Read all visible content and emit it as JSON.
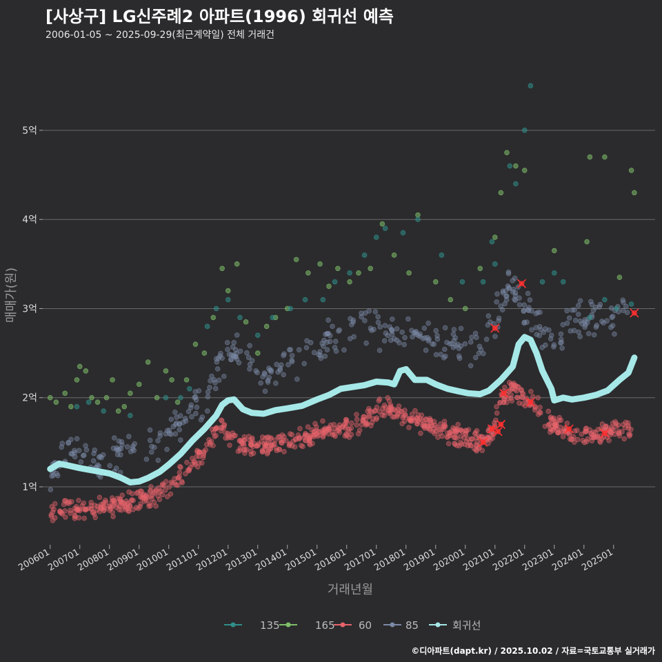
{
  "header": {
    "title": "[사상구] LG신주례2 아파트(1996) 회귀선 예측",
    "subtitle": "2006-01-05 ~ 2025-09-29(최근계약일) 전체 거래건"
  },
  "footer": {
    "credit": "©디아파트(dapt.kr) / 2025.10.02 / 자료=국토교통부 실거래가"
  },
  "chart_data": {
    "type": "scatter",
    "title": "[사상구] LG신주례2 아파트(1996) 회귀선 예측",
    "xlabel": "거래년월",
    "ylabel": "매매가(원)",
    "xlim": [
      2005.75,
      2026.4
    ],
    "ylim": [
      0.35,
      5.75
    ],
    "y_unit": "억",
    "grid": true,
    "legend_position": "bottom",
    "x_ticks": [
      {
        "value": 2006.0,
        "label": "200601"
      },
      {
        "value": 2007.0,
        "label": "200701"
      },
      {
        "value": 2008.0,
        "label": "200801"
      },
      {
        "value": 2009.0,
        "label": "200901"
      },
      {
        "value": 2010.0,
        "label": "201001"
      },
      {
        "value": 2011.0,
        "label": "201101"
      },
      {
        "value": 2012.0,
        "label": "201201"
      },
      {
        "value": 2013.0,
        "label": "201301"
      },
      {
        "value": 2014.0,
        "label": "201401"
      },
      {
        "value": 2015.0,
        "label": "201501"
      },
      {
        "value": 2016.0,
        "label": "201601"
      },
      {
        "value": 2017.0,
        "label": "201701"
      },
      {
        "value": 2018.0,
        "label": "201801"
      },
      {
        "value": 2019.0,
        "label": "201901"
      },
      {
        "value": 2020.0,
        "label": "202001"
      },
      {
        "value": 2021.0,
        "label": "202101"
      },
      {
        "value": 2022.0,
        "label": "202201"
      },
      {
        "value": 2023.0,
        "label": "202301"
      },
      {
        "value": 2024.0,
        "label": "202401"
      },
      {
        "value": 2025.0,
        "label": "202501"
      }
    ],
    "y_ticks": [
      {
        "value": 1,
        "label": "1억"
      },
      {
        "value": 2,
        "label": "2억"
      },
      {
        "value": 3,
        "label": "3억"
      },
      {
        "value": 4,
        "label": "4억"
      },
      {
        "value": 5,
        "label": "5억"
      }
    ],
    "series": [
      {
        "name": "135",
        "color": "#2f8f8a",
        "kind": "scatter",
        "points": [
          [
            2006.9,
            1.9
          ],
          [
            2007.3,
            1.95
          ],
          [
            2007.8,
            1.85
          ],
          [
            2008.7,
            1.8
          ],
          [
            2009.9,
            2.0
          ],
          [
            2010.4,
            2.0
          ],
          [
            2010.7,
            2.1
          ],
          [
            2011.3,
            2.8
          ],
          [
            2011.6,
            3.0
          ],
          [
            2012.0,
            3.1
          ],
          [
            2012.4,
            2.9
          ],
          [
            2013.0,
            2.7
          ],
          [
            2013.5,
            2.9
          ],
          [
            2014.1,
            3.0
          ],
          [
            2014.6,
            3.1
          ],
          [
            2015.2,
            3.1
          ],
          [
            2015.6,
            3.3
          ],
          [
            2016.1,
            3.4
          ],
          [
            2016.6,
            3.6
          ],
          [
            2017.0,
            3.8
          ],
          [
            2017.3,
            3.9
          ],
          [
            2017.9,
            3.85
          ],
          [
            2018.4,
            4.0
          ],
          [
            2019.2,
            3.6
          ],
          [
            2019.9,
            3.3
          ],
          [
            2020.6,
            3.3
          ],
          [
            2020.9,
            3.75
          ],
          [
            2021.0,
            3.5
          ],
          [
            2021.5,
            4.6
          ],
          [
            2021.7,
            4.4
          ],
          [
            2022.0,
            5.0
          ],
          [
            2022.2,
            5.5
          ],
          [
            2022.6,
            3.3
          ],
          [
            2023.0,
            3.4
          ],
          [
            2023.3,
            3.3
          ],
          [
            2024.2,
            2.9
          ],
          [
            2024.7,
            3.1
          ],
          [
            2025.1,
            3.0
          ],
          [
            2025.6,
            3.05
          ]
        ]
      },
      {
        "name": "165",
        "color": "#7fbf6a",
        "kind": "scatter",
        "points": [
          [
            2006.0,
            2.0
          ],
          [
            2006.2,
            1.95
          ],
          [
            2006.5,
            2.05
          ],
          [
            2006.7,
            1.9
          ],
          [
            2006.9,
            2.2
          ],
          [
            2007.0,
            2.35
          ],
          [
            2007.2,
            2.3
          ],
          [
            2007.4,
            2.0
          ],
          [
            2007.6,
            1.95
          ],
          [
            2007.9,
            2.0
          ],
          [
            2008.1,
            2.2
          ],
          [
            2008.3,
            1.85
          ],
          [
            2008.5,
            1.9
          ],
          [
            2008.7,
            2.05
          ],
          [
            2009.0,
            2.15
          ],
          [
            2009.3,
            2.4
          ],
          [
            2009.6,
            2.0
          ],
          [
            2009.9,
            2.3
          ],
          [
            2010.1,
            2.2
          ],
          [
            2010.3,
            1.95
          ],
          [
            2010.6,
            2.2
          ],
          [
            2010.9,
            2.6
          ],
          [
            2011.2,
            2.5
          ],
          [
            2011.5,
            2.9
          ],
          [
            2011.8,
            3.45
          ],
          [
            2012.0,
            3.2
          ],
          [
            2012.3,
            3.5
          ],
          [
            2012.6,
            2.85
          ],
          [
            2013.0,
            2.5
          ],
          [
            2013.3,
            2.8
          ],
          [
            2013.6,
            2.9
          ],
          [
            2014.0,
            3.0
          ],
          [
            2014.3,
            3.55
          ],
          [
            2014.7,
            3.4
          ],
          [
            2015.1,
            3.5
          ],
          [
            2015.4,
            3.25
          ],
          [
            2015.7,
            3.45
          ],
          [
            2016.1,
            3.3
          ],
          [
            2016.4,
            3.4
          ],
          [
            2016.8,
            3.45
          ],
          [
            2017.2,
            3.95
          ],
          [
            2017.6,
            3.6
          ],
          [
            2018.1,
            3.4
          ],
          [
            2018.4,
            4.05
          ],
          [
            2019.0,
            3.3
          ],
          [
            2019.5,
            3.1
          ],
          [
            2020.0,
            3.0
          ],
          [
            2020.5,
            3.45
          ],
          [
            2021.0,
            3.8
          ],
          [
            2021.2,
            4.3
          ],
          [
            2021.4,
            4.75
          ],
          [
            2021.7,
            4.6
          ],
          [
            2022.0,
            4.55
          ],
          [
            2023.0,
            3.65
          ],
          [
            2024.1,
            3.75
          ],
          [
            2024.2,
            4.7
          ],
          [
            2024.7,
            4.7
          ],
          [
            2025.2,
            3.35
          ],
          [
            2025.6,
            4.55
          ],
          [
            2025.7,
            4.3
          ]
        ]
      },
      {
        "name": "60",
        "color": "#e8636b",
        "kind": "scatter",
        "density": true,
        "trend": [
          [
            2006.0,
            0.73
          ],
          [
            2006.5,
            0.74
          ],
          [
            2007.0,
            0.75
          ],
          [
            2007.5,
            0.76
          ],
          [
            2008.0,
            0.78
          ],
          [
            2008.5,
            0.8
          ],
          [
            2009.0,
            0.84
          ],
          [
            2009.5,
            0.9
          ],
          [
            2010.0,
            0.98
          ],
          [
            2010.5,
            1.15
          ],
          [
            2011.0,
            1.3
          ],
          [
            2011.5,
            1.55
          ],
          [
            2011.8,
            1.65
          ],
          [
            2012.1,
            1.55
          ],
          [
            2012.5,
            1.5
          ],
          [
            2013.0,
            1.45
          ],
          [
            2013.5,
            1.47
          ],
          [
            2014.0,
            1.5
          ],
          [
            2014.5,
            1.55
          ],
          [
            2015.0,
            1.6
          ],
          [
            2015.5,
            1.65
          ],
          [
            2016.0,
            1.68
          ],
          [
            2016.5,
            1.7
          ],
          [
            2017.0,
            1.85
          ],
          [
            2017.3,
            1.9
          ],
          [
            2017.6,
            1.85
          ],
          [
            2018.0,
            1.8
          ],
          [
            2018.5,
            1.72
          ],
          [
            2019.0,
            1.65
          ],
          [
            2019.5,
            1.6
          ],
          [
            2020.0,
            1.55
          ],
          [
            2020.5,
            1.5
          ],
          [
            2020.9,
            1.6
          ],
          [
            2021.0,
            1.75
          ],
          [
            2021.3,
            2.0
          ],
          [
            2021.6,
            2.1
          ],
          [
            2022.0,
            2.0
          ],
          [
            2022.4,
            1.9
          ],
          [
            2022.8,
            1.75
          ],
          [
            2023.2,
            1.65
          ],
          [
            2023.6,
            1.6
          ],
          [
            2024.0,
            1.58
          ],
          [
            2024.5,
            1.58
          ],
          [
            2025.0,
            1.62
          ],
          [
            2025.6,
            1.65
          ]
        ]
      },
      {
        "name": "85",
        "color": "#7c8aa8",
        "kind": "scatter",
        "density": true,
        "trend": [
          [
            2006.0,
            1.2
          ],
          [
            2006.4,
            1.35
          ],
          [
            2006.8,
            1.4
          ],
          [
            2007.2,
            1.38
          ],
          [
            2007.6,
            1.33
          ],
          [
            2008.0,
            1.35
          ],
          [
            2008.5,
            1.4
          ],
          [
            2009.0,
            1.45
          ],
          [
            2009.5,
            1.5
          ],
          [
            2010.0,
            1.6
          ],
          [
            2010.5,
            1.75
          ],
          [
            2011.0,
            1.9
          ],
          [
            2011.5,
            2.2
          ],
          [
            2012.0,
            2.45
          ],
          [
            2012.5,
            2.6
          ],
          [
            2013.0,
            2.2
          ],
          [
            2013.5,
            2.35
          ],
          [
            2014.0,
            2.4
          ],
          [
            2014.5,
            2.45
          ],
          [
            2015.0,
            2.55
          ],
          [
            2015.5,
            2.65
          ],
          [
            2016.0,
            2.75
          ],
          [
            2016.5,
            2.85
          ],
          [
            2017.0,
            2.75
          ],
          [
            2017.5,
            2.7
          ],
          [
            2018.0,
            2.75
          ],
          [
            2018.5,
            2.7
          ],
          [
            2019.0,
            2.65
          ],
          [
            2019.5,
            2.6
          ],
          [
            2020.0,
            2.55
          ],
          [
            2020.5,
            2.6
          ],
          [
            2021.0,
            2.9
          ],
          [
            2021.5,
            3.3
          ],
          [
            2022.0,
            3.0
          ],
          [
            2022.5,
            2.85
          ],
          [
            2023.0,
            2.6
          ],
          [
            2023.5,
            2.85
          ],
          [
            2024.0,
            2.85
          ],
          [
            2024.5,
            2.95
          ],
          [
            2025.0,
            2.85
          ],
          [
            2025.5,
            2.95
          ]
        ]
      },
      {
        "name": "회귀선",
        "color": "#a6e8e8",
        "kind": "line",
        "points": [
          [
            2006.0,
            1.2
          ],
          [
            2006.3,
            1.26
          ],
          [
            2006.6,
            1.24
          ],
          [
            2007.0,
            1.21
          ],
          [
            2007.5,
            1.18
          ],
          [
            2008.0,
            1.15
          ],
          [
            2008.4,
            1.1
          ],
          [
            2008.7,
            1.05
          ],
          [
            2009.0,
            1.06
          ],
          [
            2009.3,
            1.1
          ],
          [
            2009.7,
            1.17
          ],
          [
            2010.0,
            1.25
          ],
          [
            2010.4,
            1.37
          ],
          [
            2010.8,
            1.52
          ],
          [
            2011.2,
            1.65
          ],
          [
            2011.6,
            1.8
          ],
          [
            2011.8,
            1.92
          ],
          [
            2012.0,
            1.97
          ],
          [
            2012.2,
            1.98
          ],
          [
            2012.5,
            1.87
          ],
          [
            2012.8,
            1.83
          ],
          [
            2013.2,
            1.82
          ],
          [
            2013.6,
            1.86
          ],
          [
            2014.0,
            1.88
          ],
          [
            2014.5,
            1.91
          ],
          [
            2015.0,
            1.98
          ],
          [
            2015.4,
            2.03
          ],
          [
            2015.8,
            2.1
          ],
          [
            2016.2,
            2.12
          ],
          [
            2016.6,
            2.14
          ],
          [
            2017.0,
            2.18
          ],
          [
            2017.4,
            2.17
          ],
          [
            2017.6,
            2.15
          ],
          [
            2017.8,
            2.3
          ],
          [
            2018.0,
            2.32
          ],
          [
            2018.3,
            2.2
          ],
          [
            2018.7,
            2.2
          ],
          [
            2019.0,
            2.15
          ],
          [
            2019.4,
            2.1
          ],
          [
            2019.8,
            2.07
          ],
          [
            2020.1,
            2.05
          ],
          [
            2020.5,
            2.04
          ],
          [
            2020.8,
            2.08
          ],
          [
            2021.2,
            2.2
          ],
          [
            2021.6,
            2.35
          ],
          [
            2021.8,
            2.6
          ],
          [
            2022.0,
            2.68
          ],
          [
            2022.2,
            2.65
          ],
          [
            2022.4,
            2.5
          ],
          [
            2022.6,
            2.3
          ],
          [
            2022.9,
            2.1
          ],
          [
            2023.0,
            1.97
          ],
          [
            2023.3,
            2.0
          ],
          [
            2023.6,
            1.98
          ],
          [
            2024.0,
            2.0
          ],
          [
            2024.4,
            2.03
          ],
          [
            2024.8,
            2.08
          ],
          [
            2025.2,
            2.2
          ],
          [
            2025.5,
            2.28
          ],
          [
            2025.7,
            2.45
          ]
        ]
      }
    ],
    "highlights": [
      [
        2020.6,
        1.5
      ],
      [
        2020.9,
        1.65
      ],
      [
        2021.0,
        2.78
      ],
      [
        2021.1,
        1.62
      ],
      [
        2021.2,
        1.7
      ],
      [
        2021.3,
        2.05
      ],
      [
        2021.9,
        3.28
      ],
      [
        2022.2,
        1.95
      ],
      [
        2023.5,
        1.65
      ],
      [
        2024.7,
        1.6
      ],
      [
        2025.7,
        2.95
      ]
    ]
  },
  "legend": {
    "items": [
      {
        "label": "135",
        "color": "#2f8f8a"
      },
      {
        "label": "165",
        "color": "#7fbf6a"
      },
      {
        "label": "60",
        "color": "#e8636b"
      },
      {
        "label": "85",
        "color": "#7c8aa8"
      },
      {
        "label": "회귀선",
        "color": "#a6e8e8"
      }
    ]
  }
}
